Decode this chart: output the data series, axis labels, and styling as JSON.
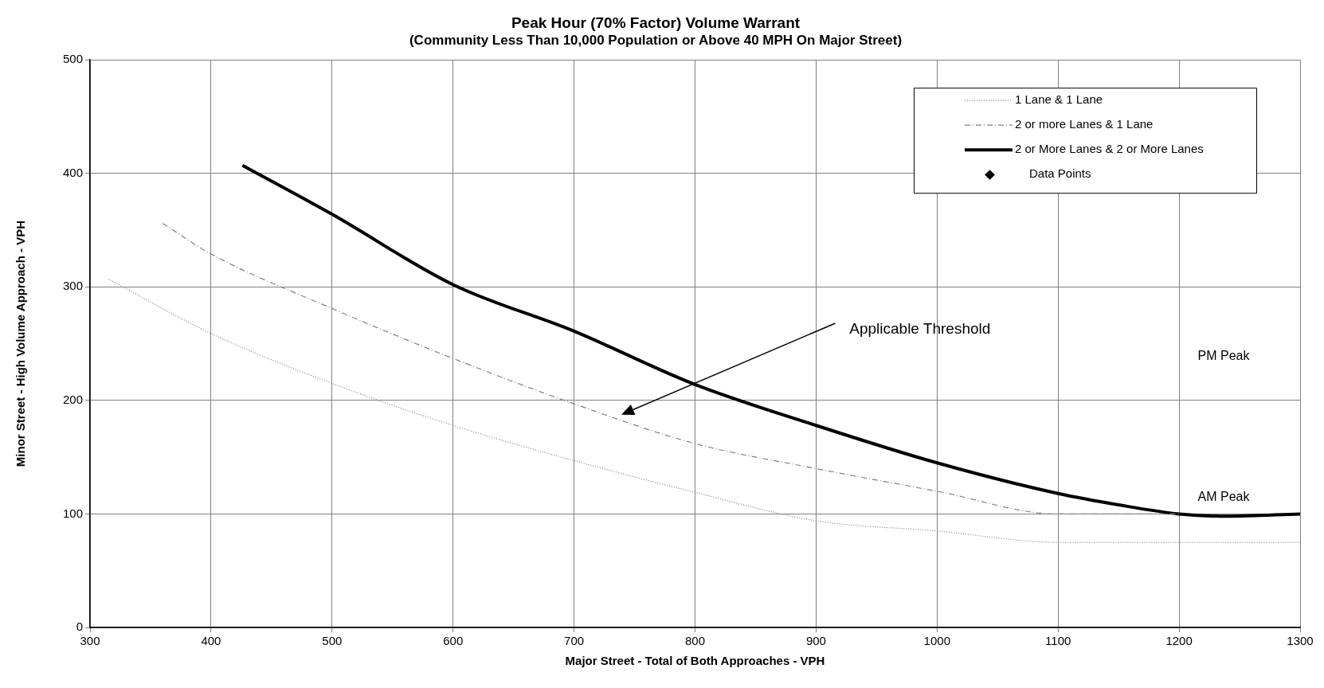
{
  "chart_data": {
    "type": "line",
    "title": "Peak Hour (70% Factor) Volume Warrant",
    "subtitle": "(Community Less Than 10,000 Population or Above 40 MPH On Major Street)",
    "xlabel": "Major Street - Total of Both Approaches - VPH",
    "ylabel": "Minor Street - High Volume Approach - VPH",
    "xlim": [
      300,
      1300
    ],
    "xticks": [
      300,
      400,
      500,
      600,
      700,
      800,
      900,
      1000,
      1100,
      1200,
      1300
    ],
    "ylim": [
      0,
      500
    ],
    "yticks": [
      0,
      100,
      200,
      300,
      400,
      500
    ],
    "grid": true,
    "legend": "top right",
    "marker": "none",
    "series": [
      {
        "name": "1 Lane & 1 Lane",
        "color": "#808080",
        "line_style": "dotted",
        "x": [
          315,
          400,
          500,
          600,
          700,
          800,
          900,
          1000,
          1100,
          1200,
          1300
        ],
        "values": [
          307,
          259,
          215,
          178,
          147,
          119,
          94,
          85,
          75,
          75,
          75
        ]
      },
      {
        "name": "2 or more Lanes & 1 Lane",
        "color": "#808080",
        "line_style": "dashed",
        "x": [
          360,
          400,
          500,
          600,
          700,
          800,
          900,
          1000,
          1100,
          1200
        ],
        "values": [
          356,
          329,
          281,
          237,
          197,
          162,
          140,
          120,
          100,
          100
        ]
      },
      {
        "name": "2 or More Lanes & 2 or More Lanes",
        "color": "#000000",
        "line_style": "solid",
        "x": [
          426,
          500,
          600,
          700,
          800,
          900,
          1000,
          1100,
          1150,
          1200,
          1240,
          1300
        ],
        "values": [
          407,
          364,
          302,
          261,
          214,
          178,
          145,
          118,
          108,
          100,
          98,
          100
        ]
      },
      {
        "name": "Data Points",
        "type": "scatter",
        "marker": "diamond",
        "color": "#000000"
      }
    ],
    "annotations": [
      "Applicable Threshold",
      "PM Peak",
      "AM Peak"
    ]
  }
}
